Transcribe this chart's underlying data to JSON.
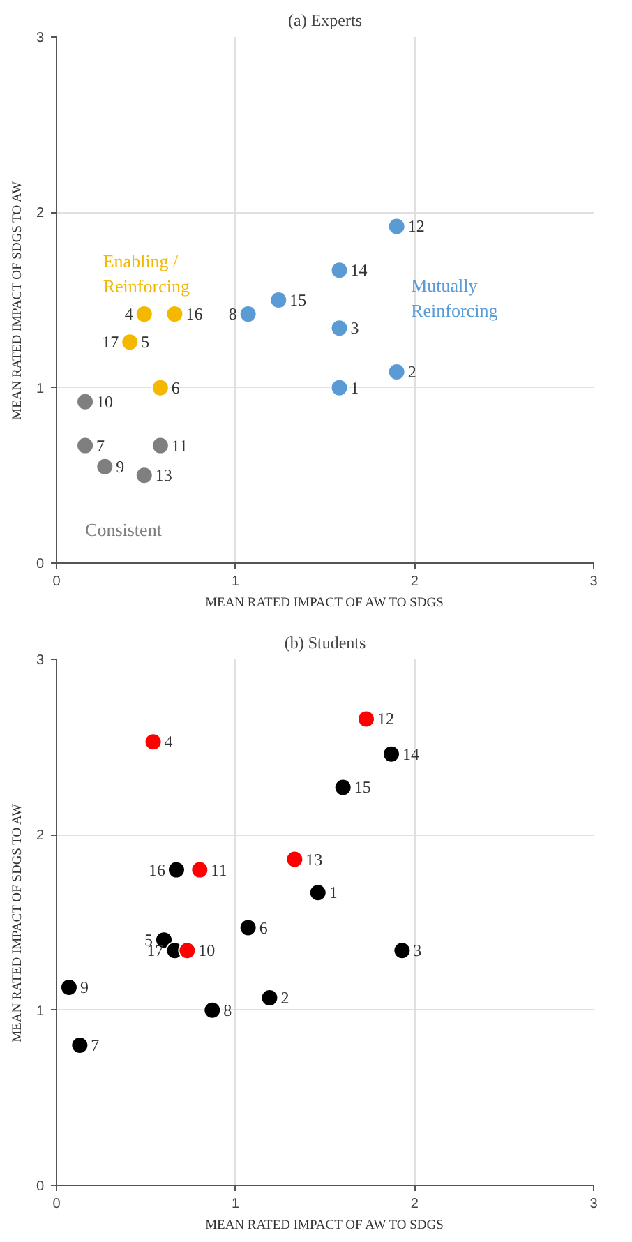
{
  "chart_data": [
    {
      "type": "scatter",
      "title": "(a) Experts",
      "xlabel": "MEAN RATED IMPACT OF AW TO SDGS",
      "ylabel": "MEAN RATED IMPACT OF SDGS TO AW",
      "xlim": [
        0,
        3
      ],
      "ylim": [
        0,
        3
      ],
      "xticks": [
        0,
        1,
        2,
        3
      ],
      "yticks": [
        0,
        1,
        2,
        3
      ],
      "grid": true,
      "marker": "circle",
      "series": [
        {
          "name": "Enabling / Reinforcing",
          "color": "#f5b800",
          "x": [
            0.49,
            0.66,
            0.41,
            null,
            0.58
          ],
          "values": [
            1.42,
            1.42,
            1.26,
            null,
            1.0
          ]
        },
        {
          "name": "Mutually Reinforcing",
          "color": "#5b9bd5",
          "x": [
            1.07,
            1.24,
            1.58,
            1.9,
            1.58,
            1.9,
            1.58
          ],
          "values": [
            1.42,
            1.5,
            1.67,
            1.92,
            1.34,
            1.09,
            1.0
          ]
        },
        {
          "name": "Consistent",
          "color": "#7f7f7f",
          "x": [
            0.16,
            0.16,
            0.58,
            0.27,
            0.49
          ],
          "values": [
            0.92,
            0.67,
            0.67,
            0.55,
            0.5
          ]
        }
      ],
      "annotations": [
        {
          "text": "4",
          "x": 0.49,
          "y": 1.42
        },
        {
          "text": "16",
          "x": 0.66,
          "y": 1.42
        },
        {
          "text": "5",
          "x": 0.41,
          "y": 1.26
        },
        {
          "text": "17",
          "x": 0.41,
          "y": 1.26
        },
        {
          "text": "6",
          "x": 0.58,
          "y": 1.0
        },
        {
          "text": "8",
          "x": 1.07,
          "y": 1.42
        },
        {
          "text": "15",
          "x": 1.24,
          "y": 1.5
        },
        {
          "text": "14",
          "x": 1.58,
          "y": 1.67
        },
        {
          "text": "12",
          "x": 1.9,
          "y": 1.92
        },
        {
          "text": "3",
          "x": 1.58,
          "y": 1.34
        },
        {
          "text": "2",
          "x": 1.9,
          "y": 1.09
        },
        {
          "text": "1",
          "x": 1.58,
          "y": 1.0
        },
        {
          "text": "10",
          "x": 0.16,
          "y": 0.92
        },
        {
          "text": "7",
          "x": 0.16,
          "y": 0.67
        },
        {
          "text": "11",
          "x": 0.58,
          "y": 0.67
        },
        {
          "text": "9",
          "x": 0.27,
          "y": 0.55
        },
        {
          "text": "13",
          "x": 0.49,
          "y": 0.5
        }
      ]
    },
    {
      "type": "scatter",
      "title": "(b) Students",
      "xlabel": "MEAN RATED IMPACT OF AW TO SDGS",
      "ylabel": "MEAN RATED IMPACT OF SDGS TO AW",
      "xlim": [
        0,
        3
      ],
      "ylim": [
        0,
        3
      ],
      "xticks": [
        0,
        1,
        2,
        3
      ],
      "yticks": [
        0,
        1,
        2,
        3
      ],
      "grid": true,
      "marker": "circle",
      "series": [
        {
          "color": "#000000",
          "x": [
            1.87,
            1.6,
            0.67,
            1.46,
            1.07,
            0.6,
            0.66,
            1.93,
            0.07,
            1.19,
            0.87,
            0.13
          ],
          "values": [
            2.46,
            2.27,
            1.8,
            1.67,
            1.47,
            1.4,
            1.34,
            1.34,
            1.13,
            1.07,
            1.0,
            0.8
          ]
        },
        {
          "color": "#ff0000",
          "x": [
            0.54,
            1.73,
            1.33,
            0.8,
            0.73
          ],
          "values": [
            2.53,
            2.66,
            1.86,
            1.8,
            1.34
          ]
        }
      ],
      "annotations": [
        {
          "text": "14",
          "x": 1.87,
          "y": 2.46
        },
        {
          "text": "15",
          "x": 1.6,
          "y": 2.27
        },
        {
          "text": "16",
          "x": 0.67,
          "y": 1.8
        },
        {
          "text": "1",
          "x": 1.46,
          "y": 1.67
        },
        {
          "text": "6",
          "x": 1.07,
          "y": 1.47
        },
        {
          "text": "5",
          "x": 0.6,
          "y": 1.4
        },
        {
          "text": "17",
          "x": 0.66,
          "y": 1.34
        },
        {
          "text": "3",
          "x": 1.93,
          "y": 1.34
        },
        {
          "text": "9",
          "x": 0.07,
          "y": 1.13
        },
        {
          "text": "2",
          "x": 1.19,
          "y": 1.07
        },
        {
          "text": "8",
          "x": 0.87,
          "y": 1.0
        },
        {
          "text": "7",
          "x": 0.13,
          "y": 0.8
        },
        {
          "text": "4",
          "x": 0.54,
          "y": 2.53
        },
        {
          "text": "12",
          "x": 1.73,
          "y": 2.66
        },
        {
          "text": "13",
          "x": 1.33,
          "y": 1.86
        },
        {
          "text": "11",
          "x": 0.8,
          "y": 1.8
        },
        {
          "text": "10",
          "x": 0.73,
          "y": 1.34
        }
      ]
    }
  ]
}
